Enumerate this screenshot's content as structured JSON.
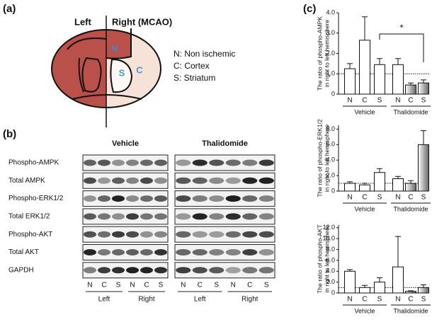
{
  "panel_labels": [
    "(a)",
    "(b)",
    "(c)"
  ],
  "diagram": {
    "left": "Left",
    "right": "Right (MCAO)",
    "region_letters": [
      "N",
      "S",
      "C"
    ],
    "legend": [
      "N: Non ischemic",
      "C: Cortex",
      "S: Striatum"
    ]
  },
  "blot": {
    "groups": [
      "Vehicle",
      "Thalidomide"
    ],
    "rows": [
      "Phospho-AMPK",
      "Total AMPK",
      "Phospho-ERK1/2",
      "Total ERK1/2",
      "Phospho-AKT",
      "Total AKT",
      "GAPDH"
    ],
    "lanes": [
      "N",
      "C",
      "S",
      "N",
      "C",
      "S"
    ],
    "sides": [
      "Left",
      "Right"
    ]
  },
  "chart_data": [
    {
      "type": "bar",
      "ylabel": [
        "The ratio of phospho-AMPK",
        "in right to left hemisphere"
      ],
      "categories": [
        "N",
        "C",
        "S",
        "N",
        "C",
        "S"
      ],
      "groups": [
        "Vehicle",
        "Thalidomide"
      ],
      "values": [
        1.25,
        2.65,
        1.45,
        1.45,
        0.45,
        0.55
      ],
      "errors": [
        0.25,
        1.15,
        0.3,
        0.3,
        0.1,
        0.15
      ],
      "colors": [
        "#ffffff",
        "#ffffff",
        "#ffffff",
        "#ffffff",
        "#666666",
        "#666666"
      ],
      "ylim": [
        0,
        4.0
      ],
      "yticks": [
        0,
        {
          "value": 1,
          "label": "1.0"
        },
        {
          "value": 2,
          "label": "2.0"
        },
        {
          "value": 3,
          "label": "3.0"
        },
        {
          "value": 4,
          "label": "4.0"
        }
      ],
      "reference_line": 1,
      "annotation": "*"
    },
    {
      "type": "bar",
      "ylabel": [
        "The ratio of phospho-ERK1/2",
        "in right to left hemisphere"
      ],
      "categories": [
        "N",
        "C",
        "S",
        "N",
        "C",
        "S"
      ],
      "groups": [
        "Vehicle",
        "Thalidomide"
      ],
      "values": [
        1.0,
        0.8,
        2.4,
        1.6,
        1.0,
        6.0
      ],
      "errors": [
        0.2,
        0.2,
        0.5,
        0.3,
        0.35,
        1.8
      ],
      "colors": [
        "#ffffff",
        "#ffffff",
        "#ffffff",
        "#ffffff",
        "#666666",
        "#666666"
      ],
      "ylim": [
        0,
        8.5
      ],
      "yticks": [
        0,
        {
          "value": 2,
          "label": "2.0"
        },
        {
          "value": 4,
          "label": "4.0"
        },
        {
          "value": 6,
          "label": "6.0"
        },
        {
          "value": 8,
          "label": "8.0"
        }
      ],
      "reference_line": 1
    },
    {
      "type": "bar",
      "ylabel": [
        "The ratio of phospho-AKT",
        "in right to left hemisphere"
      ],
      "categories": [
        "N",
        "C",
        "S",
        "N",
        "C",
        "S"
      ],
      "groups": [
        "Vehicle",
        "Thalidomide"
      ],
      "values": [
        4.0,
        1.0,
        2.0,
        4.8,
        0.3,
        1.0
      ],
      "errors": [
        0.3,
        0.4,
        0.8,
        5.6,
        0.1,
        0.5
      ],
      "colors": [
        "#ffffff",
        "#ffffff",
        "#ffffff",
        "#ffffff",
        "#666666",
        "#666666"
      ],
      "ylim": [
        0,
        12.5
      ],
      "yticks": [
        0,
        {
          "value": 2,
          "label": "2.0"
        },
        {
          "value": 4,
          "label": "4.0"
        },
        {
          "value": 6,
          "label": "6.0"
        },
        {
          "value": 8,
          "label": "8.0"
        },
        {
          "value": 10,
          "label": "10.0"
        },
        {
          "value": 12,
          "label": "12.0"
        }
      ],
      "reference_line": 1
    }
  ]
}
